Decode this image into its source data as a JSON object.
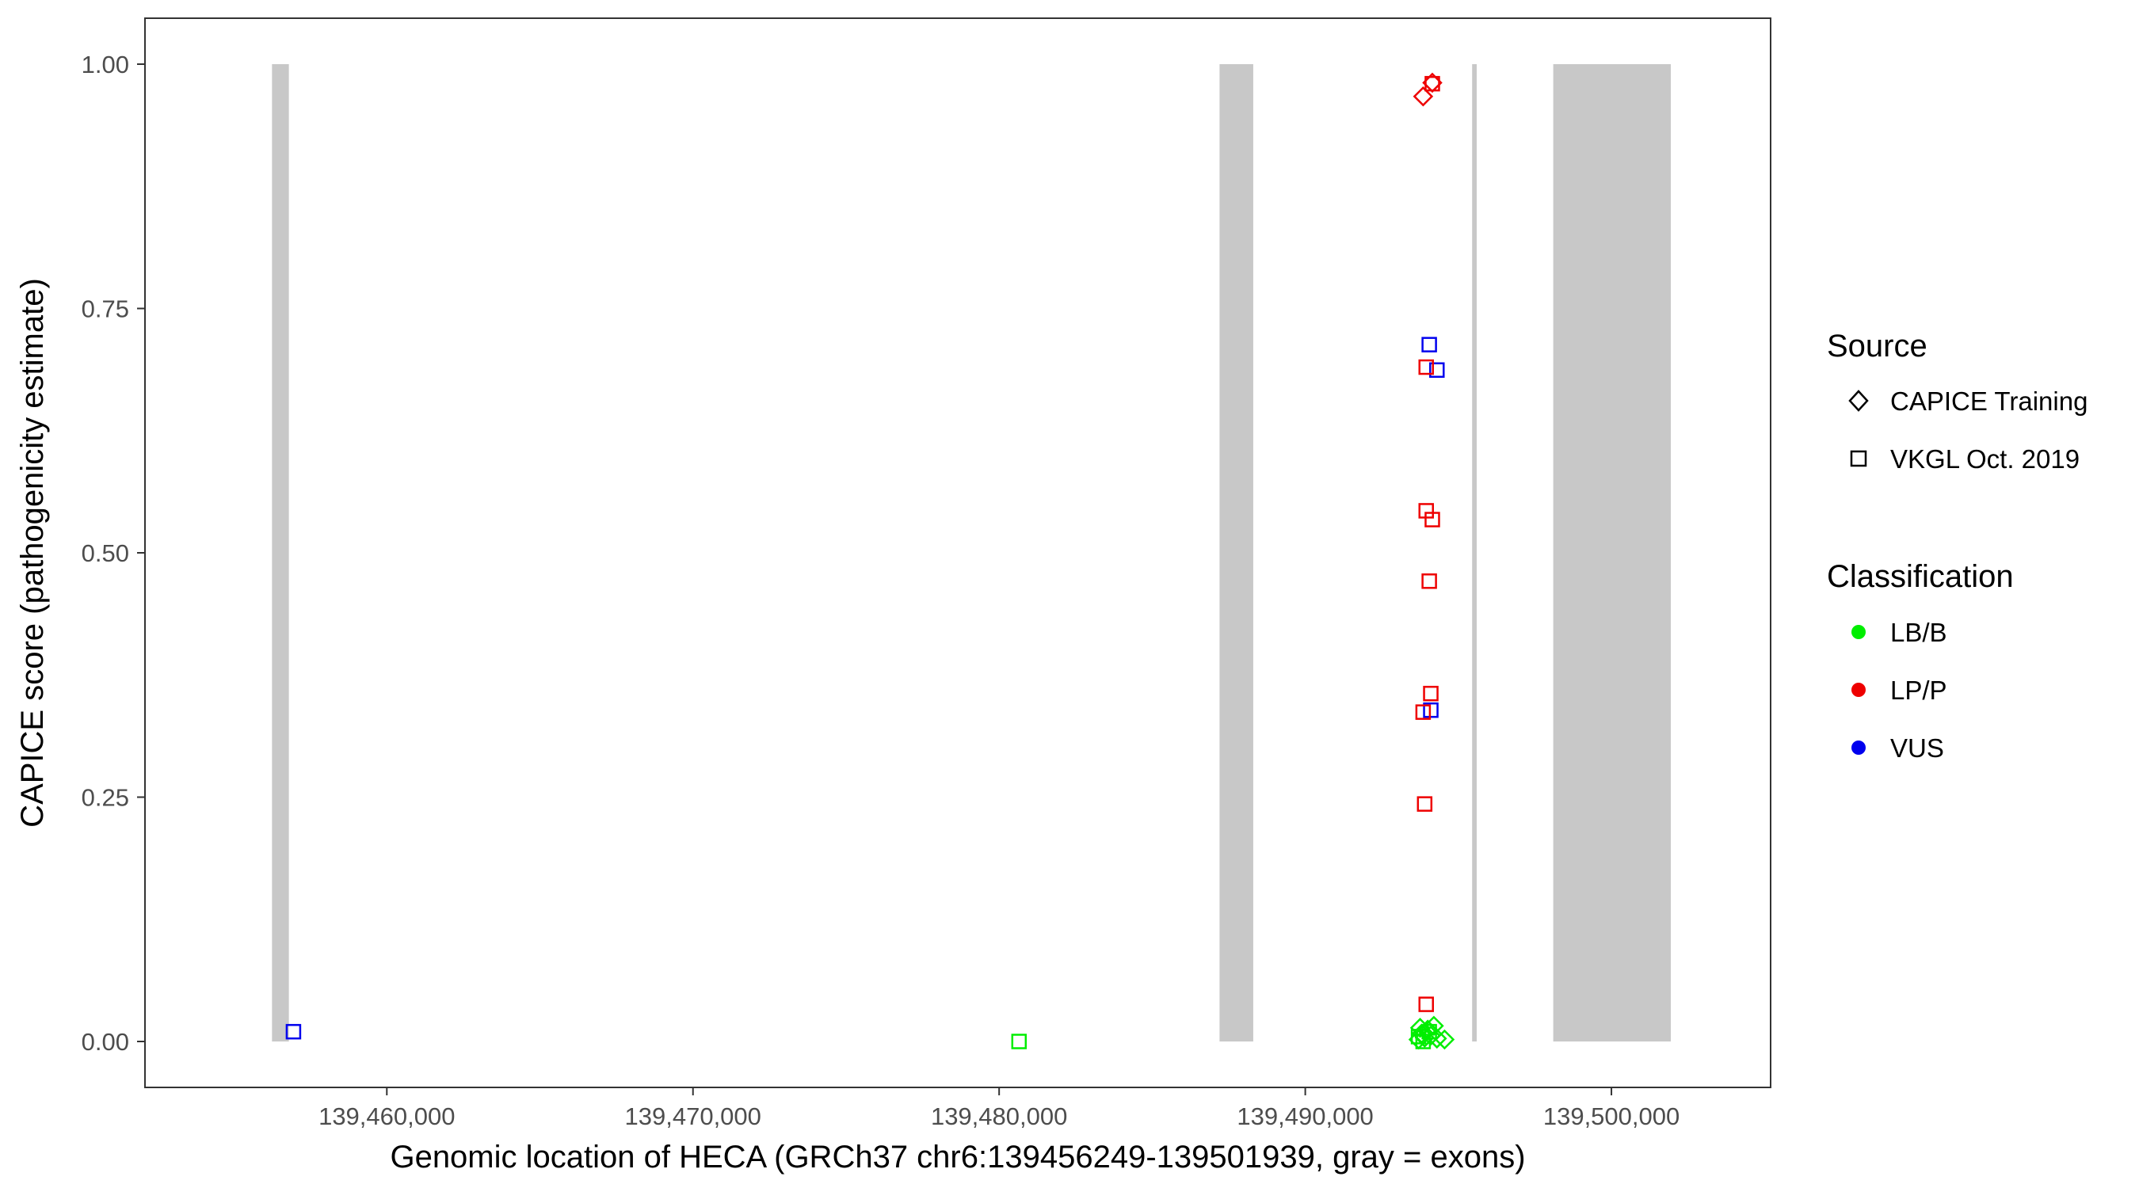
{
  "chart_data": {
    "type": "scatter",
    "title": "",
    "xlabel": "Genomic location of HECA (GRCh37 chr6:139456249-139501939, gray = exons)",
    "ylabel": "CAPICE score (pathogenicity estimate)",
    "xlim": [
      139452100,
      139505200
    ],
    "ylim": [
      -0.047,
      1.047
    ],
    "x_ticks": [
      139460000,
      139470000,
      139480000,
      139490000,
      139500000
    ],
    "x_tick_labels": [
      "139,460,000",
      "139,470,000",
      "139,480,000",
      "139,490,000",
      "139,500,000"
    ],
    "y_ticks": [
      0,
      0.25,
      0.5,
      0.75,
      1
    ],
    "y_tick_labels": [
      "0.00",
      "0.25",
      "0.50",
      "0.75",
      "1.00"
    ],
    "grid": false,
    "exons": [
      {
        "start": 139456249,
        "end": 139456800
      },
      {
        "start": 139487200,
        "end": 139488300
      },
      {
        "start": 139495450,
        "end": 139495600
      },
      {
        "start": 139498100,
        "end": 139501939
      }
    ],
    "legend": {
      "position": "right",
      "source": {
        "title": "Source",
        "entries": [
          {
            "label": "CAPICE Training",
            "shape": "diamond"
          },
          {
            "label": "VKGL Oct. 2019",
            "shape": "square"
          }
        ]
      },
      "classification": {
        "title": "Classification",
        "entries": [
          {
            "label": "LB/B",
            "color": "#00ee00"
          },
          {
            "label": "LP/P",
            "color": "#ee0000"
          },
          {
            "label": "VUS",
            "color": "#0000ee"
          }
        ]
      }
    },
    "points": [
      {
        "x": 139456950,
        "y": 0.01,
        "source": "VKGL Oct. 2019",
        "class": "VUS"
      },
      {
        "x": 139480650,
        "y": 0.0,
        "source": "VKGL Oct. 2019",
        "class": "LB/B"
      },
      {
        "x": 139494150,
        "y": 0.98,
        "source": "VKGL Oct. 2019",
        "class": "LP/P"
      },
      {
        "x": 139493850,
        "y": 0.967,
        "source": "CAPICE Training",
        "class": "LP/P"
      },
      {
        "x": 139494150,
        "y": 0.981,
        "source": "CAPICE Training",
        "class": "LP/P"
      },
      {
        "x": 139494050,
        "y": 0.713,
        "source": "VKGL Oct. 2019",
        "class": "VUS"
      },
      {
        "x": 139494300,
        "y": 0.687,
        "source": "VKGL Oct. 2019",
        "class": "VUS"
      },
      {
        "x": 139493950,
        "y": 0.69,
        "source": "VKGL Oct. 2019",
        "class": "LP/P"
      },
      {
        "x": 139493950,
        "y": 0.543,
        "source": "VKGL Oct. 2019",
        "class": "LP/P"
      },
      {
        "x": 139494150,
        "y": 0.534,
        "source": "VKGL Oct. 2019",
        "class": "LP/P"
      },
      {
        "x": 139494050,
        "y": 0.471,
        "source": "VKGL Oct. 2019",
        "class": "LP/P"
      },
      {
        "x": 139494100,
        "y": 0.356,
        "source": "VKGL Oct. 2019",
        "class": "LP/P"
      },
      {
        "x": 139494100,
        "y": 0.339,
        "source": "VKGL Oct. 2019",
        "class": "VUS"
      },
      {
        "x": 139493850,
        "y": 0.337,
        "source": "VKGL Oct. 2019",
        "class": "LP/P"
      },
      {
        "x": 139493900,
        "y": 0.243,
        "source": "VKGL Oct. 2019",
        "class": "LP/P"
      },
      {
        "x": 139493950,
        "y": 0.038,
        "source": "VKGL Oct. 2019",
        "class": "LP/P"
      },
      {
        "x": 139493700,
        "y": 0.002,
        "source": "CAPICE Training",
        "class": "LB/B"
      },
      {
        "x": 139493800,
        "y": 0.008,
        "source": "CAPICE Training",
        "class": "LB/B"
      },
      {
        "x": 139493900,
        "y": 0.004,
        "source": "CAPICE Training",
        "class": "LB/B"
      },
      {
        "x": 139494000,
        "y": 0.012,
        "source": "CAPICE Training",
        "class": "LB/B"
      },
      {
        "x": 139494100,
        "y": 0.006,
        "source": "CAPICE Training",
        "class": "LB/B"
      },
      {
        "x": 139494200,
        "y": 0.016,
        "source": "CAPICE Training",
        "class": "LB/B"
      },
      {
        "x": 139494300,
        "y": 0.003,
        "source": "CAPICE Training",
        "class": "LB/B"
      },
      {
        "x": 139494550,
        "y": 0.002,
        "source": "CAPICE Training",
        "class": "LB/B"
      },
      {
        "x": 139493750,
        "y": 0.014,
        "source": "CAPICE Training",
        "class": "LB/B"
      },
      {
        "x": 139493850,
        "y": 0.0,
        "source": "VKGL Oct. 2019",
        "class": "LB/B"
      },
      {
        "x": 139494050,
        "y": 0.01,
        "source": "VKGL Oct. 2019",
        "class": "LB/B"
      },
      {
        "x": 139493700,
        "y": 0.005,
        "source": "VKGL Oct. 2019",
        "class": "LB/B"
      }
    ]
  }
}
